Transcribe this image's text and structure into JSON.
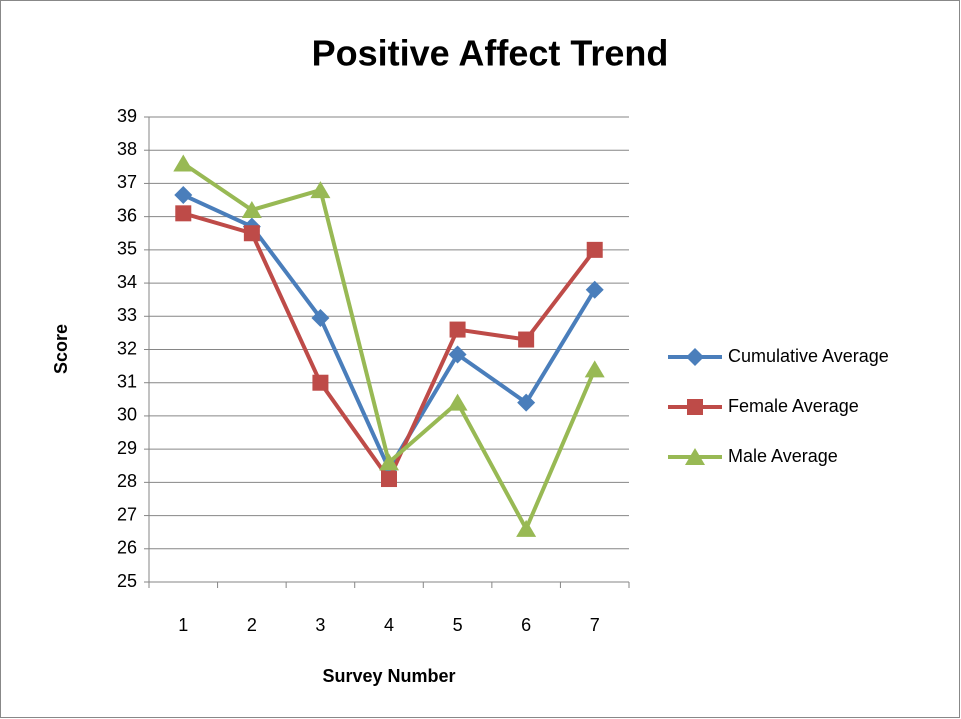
{
  "chart_data": {
    "type": "line",
    "title": "Positive Affect Trend",
    "x_label": "Survey Number",
    "y_label": "Score",
    "categories": [
      "1",
      "2",
      "3",
      "4",
      "5",
      "6",
      "7"
    ],
    "series": [
      {
        "name": "Cumulative Average",
        "color": "#4a7ebb",
        "marker": "diamond",
        "values": [
          36.65,
          35.7,
          32.95,
          28.4,
          31.85,
          30.4,
          33.8
        ]
      },
      {
        "name": "Female Average",
        "color": "#be4b48",
        "marker": "square",
        "values": [
          36.1,
          35.5,
          31.0,
          28.1,
          32.6,
          32.3,
          35.0
        ]
      },
      {
        "name": "Male Average",
        "color": "#98b954",
        "marker": "triangle",
        "values": [
          37.6,
          36.2,
          36.8,
          28.6,
          30.4,
          26.6,
          31.4
        ]
      }
    ],
    "ylim": [
      25,
      39
    ],
    "yticks": [
      25,
      26,
      27,
      28,
      29,
      30,
      31,
      32,
      33,
      34,
      35,
      36,
      37,
      38,
      39
    ],
    "grid": true,
    "legend": "right"
  }
}
